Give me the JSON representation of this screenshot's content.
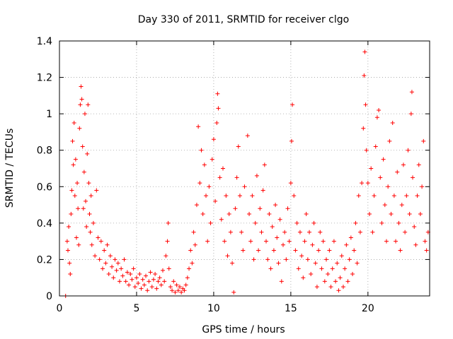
{
  "chart_data": {
    "type": "scatter",
    "title": "Day 330 of 2011, SRMTID for receiver clgo",
    "xlabel": "GPS time / hours",
    "ylabel": "SRMTID / TECUs",
    "xlim": [
      0,
      24
    ],
    "ylim": [
      0,
      1.4
    ],
    "xticks": [
      0,
      5,
      10,
      15,
      20
    ],
    "xtick_labels": [
      "0",
      "5",
      "10",
      "15",
      "20"
    ],
    "yticks": [
      0,
      0.2,
      0.4,
      0.6,
      0.8,
      1,
      1.2,
      1.4
    ],
    "ytick_labels": [
      "0",
      "0.2",
      "0.4",
      "0.6",
      "0.8",
      "1",
      "1.2",
      "1.4"
    ],
    "grid": true,
    "marker": "plus",
    "series_color": "#ff0000",
    "series": [
      {
        "name": "SRMTID",
        "points": [
          [
            0.4,
            0.0
          ],
          [
            0.5,
            0.3
          ],
          [
            0.55,
            0.25
          ],
          [
            0.6,
            0.38
          ],
          [
            0.65,
            0.18
          ],
          [
            0.7,
            0.12
          ],
          [
            0.75,
            0.45
          ],
          [
            0.8,
            0.58
          ],
          [
            0.85,
            0.85
          ],
          [
            0.9,
            0.72
          ],
          [
            0.95,
            0.95
          ],
          [
            1.0,
            0.55
          ],
          [
            1.05,
            0.75
          ],
          [
            1.1,
            0.32
          ],
          [
            1.15,
            0.62
          ],
          [
            1.2,
            0.48
          ],
          [
            1.25,
            0.28
          ],
          [
            1.3,
            0.92
          ],
          [
            1.35,
            1.05
          ],
          [
            1.4,
            1.15
          ],
          [
            1.45,
            1.08
          ],
          [
            1.5,
            0.82
          ],
          [
            1.55,
            0.48
          ],
          [
            1.6,
            0.68
          ],
          [
            1.65,
            1.0
          ],
          [
            1.7,
            0.52
          ],
          [
            1.75,
            0.38
          ],
          [
            1.8,
            0.78
          ],
          [
            1.85,
            1.05
          ],
          [
            1.9,
            0.62
          ],
          [
            1.95,
            0.45
          ],
          [
            2.0,
            0.35
          ],
          [
            2.05,
            0.55
          ],
          [
            2.1,
            0.28
          ],
          [
            2.2,
            0.4
          ],
          [
            2.3,
            0.22
          ],
          [
            2.4,
            0.58
          ],
          [
            2.5,
            0.32
          ],
          [
            2.6,
            0.2
          ],
          [
            2.7,
            0.3
          ],
          [
            2.8,
            0.15
          ],
          [
            2.9,
            0.25
          ],
          [
            3.0,
            0.18
          ],
          [
            3.1,
            0.28
          ],
          [
            3.2,
            0.12
          ],
          [
            3.3,
            0.22
          ],
          [
            3.4,
            0.16
          ],
          [
            3.5,
            0.1
          ],
          [
            3.6,
            0.2
          ],
          [
            3.7,
            0.14
          ],
          [
            3.8,
            0.18
          ],
          [
            3.9,
            0.08
          ],
          [
            4.0,
            0.15
          ],
          [
            4.1,
            0.11
          ],
          [
            4.2,
            0.2
          ],
          [
            4.3,
            0.08
          ],
          [
            4.4,
            0.13
          ],
          [
            4.5,
            0.06
          ],
          [
            4.6,
            0.12
          ],
          [
            4.7,
            0.09
          ],
          [
            4.8,
            0.15
          ],
          [
            4.9,
            0.05
          ],
          [
            5.0,
            0.1
          ],
          [
            5.1,
            0.07
          ],
          [
            5.2,
            0.12
          ],
          [
            5.3,
            0.04
          ],
          [
            5.4,
            0.09
          ],
          [
            5.5,
            0.06
          ],
          [
            5.6,
            0.11
          ],
          [
            5.7,
            0.03
          ],
          [
            5.8,
            0.08
          ],
          [
            5.9,
            0.13
          ],
          [
            6.0,
            0.05
          ],
          [
            6.1,
            0.09
          ],
          [
            6.2,
            0.12
          ],
          [
            6.3,
            0.04
          ],
          [
            6.4,
            0.08
          ],
          [
            6.5,
            0.1
          ],
          [
            6.6,
            0.06
          ],
          [
            6.7,
            0.14
          ],
          [
            6.8,
            0.08
          ],
          [
            6.9,
            0.22
          ],
          [
            7.0,
            0.3
          ],
          [
            7.05,
            0.4
          ],
          [
            7.1,
            0.15
          ],
          [
            7.2,
            0.05
          ],
          [
            7.3,
            0.03
          ],
          [
            7.4,
            0.08
          ],
          [
            7.5,
            0.02
          ],
          [
            7.6,
            0.06
          ],
          [
            7.7,
            0.03
          ],
          [
            7.8,
            0.05
          ],
          [
            7.9,
            0.02
          ],
          [
            8.0,
            0.04
          ],
          [
            8.1,
            0.03
          ],
          [
            8.2,
            0.06
          ],
          [
            8.3,
            0.1
          ],
          [
            8.4,
            0.15
          ],
          [
            8.5,
            0.25
          ],
          [
            8.6,
            0.18
          ],
          [
            8.7,
            0.35
          ],
          [
            8.8,
            0.28
          ],
          [
            8.9,
            0.5
          ],
          [
            9.0,
            0.93
          ],
          [
            9.1,
            0.62
          ],
          [
            9.2,
            0.8
          ],
          [
            9.3,
            0.45
          ],
          [
            9.4,
            0.72
          ],
          [
            9.5,
            0.55
          ],
          [
            9.6,
            0.3
          ],
          [
            9.7,
            0.6
          ],
          [
            9.8,
            0.4
          ],
          [
            9.9,
            0.75
          ],
          [
            10.0,
            0.86
          ],
          [
            10.1,
            0.52
          ],
          [
            10.2,
            0.95
          ],
          [
            10.25,
            1.11
          ],
          [
            10.3,
            1.03
          ],
          [
            10.4,
            0.65
          ],
          [
            10.5,
            0.42
          ],
          [
            10.6,
            0.7
          ],
          [
            10.7,
            0.3
          ],
          [
            10.8,
            0.55
          ],
          [
            10.9,
            0.22
          ],
          [
            11.0,
            0.45
          ],
          [
            11.1,
            0.35
          ],
          [
            11.2,
            0.18
          ],
          [
            11.3,
            0.02
          ],
          [
            11.4,
            0.48
          ],
          [
            11.5,
            0.65
          ],
          [
            11.6,
            0.82
          ],
          [
            11.7,
            0.55
          ],
          [
            11.8,
            0.35
          ],
          [
            11.9,
            0.25
          ],
          [
            12.0,
            0.6
          ],
          [
            12.2,
            0.88
          ],
          [
            12.3,
            0.45
          ],
          [
            12.4,
            0.3
          ],
          [
            12.5,
            0.55
          ],
          [
            12.6,
            0.2
          ],
          [
            12.7,
            0.4
          ],
          [
            12.8,
            0.66
          ],
          [
            12.9,
            0.25
          ],
          [
            13.0,
            0.48
          ],
          [
            13.1,
            0.35
          ],
          [
            13.2,
            0.58
          ],
          [
            13.3,
            0.72
          ],
          [
            13.4,
            0.3
          ],
          [
            13.5,
            0.2
          ],
          [
            13.6,
            0.45
          ],
          [
            13.7,
            0.15
          ],
          [
            13.8,
            0.38
          ],
          [
            13.9,
            0.25
          ],
          [
            14.0,
            0.5
          ],
          [
            14.1,
            0.32
          ],
          [
            14.2,
            0.18
          ],
          [
            14.3,
            0.42
          ],
          [
            14.4,
            0.08
          ],
          [
            14.5,
            0.28
          ],
          [
            14.6,
            0.35
          ],
          [
            14.7,
            0.2
          ],
          [
            14.8,
            0.48
          ],
          [
            14.9,
            0.3
          ],
          [
            15.0,
            0.62
          ],
          [
            15.05,
            0.85
          ],
          [
            15.1,
            1.05
          ],
          [
            15.2,
            0.55
          ],
          [
            15.3,
            0.25
          ],
          [
            15.4,
            0.4
          ],
          [
            15.5,
            0.15
          ],
          [
            15.6,
            0.35
          ],
          [
            15.7,
            0.22
          ],
          [
            15.8,
            0.1
          ],
          [
            15.9,
            0.3
          ],
          [
            16.0,
            0.45
          ],
          [
            16.1,
            0.2
          ],
          [
            16.2,
            0.35
          ],
          [
            16.3,
            0.12
          ],
          [
            16.4,
            0.28
          ],
          [
            16.5,
            0.4
          ],
          [
            16.6,
            0.18
          ],
          [
            16.7,
            0.05
          ],
          [
            16.8,
            0.25
          ],
          [
            16.9,
            0.35
          ],
          [
            17.0,
            0.15
          ],
          [
            17.1,
            0.3
          ],
          [
            17.2,
            0.08
          ],
          [
            17.3,
            0.2
          ],
          [
            17.4,
            0.12
          ],
          [
            17.5,
            0.25
          ],
          [
            17.6,
            0.05
          ],
          [
            17.7,
            0.15
          ],
          [
            17.8,
            0.3
          ],
          [
            17.9,
            0.08
          ],
          [
            18.0,
            0.18
          ],
          [
            18.1,
            0.03
          ],
          [
            18.2,
            0.1
          ],
          [
            18.3,
            0.22
          ],
          [
            18.4,
            0.05
          ],
          [
            18.5,
            0.15
          ],
          [
            18.6,
            0.28
          ],
          [
            18.7,
            0.08
          ],
          [
            18.8,
            0.2
          ],
          [
            18.9,
            0.32
          ],
          [
            19.0,
            0.12
          ],
          [
            19.1,
            0.25
          ],
          [
            19.2,
            0.4
          ],
          [
            19.3,
            0.18
          ],
          [
            19.4,
            0.55
          ],
          [
            19.5,
            0.35
          ],
          [
            19.6,
            0.62
          ],
          [
            19.7,
            0.92
          ],
          [
            19.75,
            1.21
          ],
          [
            19.8,
            1.34
          ],
          [
            19.85,
            1.05
          ],
          [
            19.9,
            0.8
          ],
          [
            20.0,
            0.62
          ],
          [
            20.1,
            0.45
          ],
          [
            20.2,
            0.7
          ],
          [
            20.3,
            0.35
          ],
          [
            20.4,
            0.55
          ],
          [
            20.5,
            0.82
          ],
          [
            20.6,
            0.98
          ],
          [
            20.7,
            1.02
          ],
          [
            20.8,
            0.65
          ],
          [
            20.9,
            0.4
          ],
          [
            21.0,
            0.75
          ],
          [
            21.1,
            0.5
          ],
          [
            21.2,
            0.3
          ],
          [
            21.3,
            0.6
          ],
          [
            21.4,
            0.85
          ],
          [
            21.5,
            0.45
          ],
          [
            21.6,
            0.95
          ],
          [
            21.7,
            0.55
          ],
          [
            21.8,
            0.3
          ],
          [
            21.9,
            0.68
          ],
          [
            22.0,
            0.4
          ],
          [
            22.1,
            0.25
          ],
          [
            22.2,
            0.5
          ],
          [
            22.3,
            0.72
          ],
          [
            22.4,
            0.35
          ],
          [
            22.5,
            0.55
          ],
          [
            22.6,
            0.8
          ],
          [
            22.7,
            0.45
          ],
          [
            22.8,
            1.0
          ],
          [
            22.85,
            1.12
          ],
          [
            22.9,
            0.65
          ],
          [
            23.0,
            0.38
          ],
          [
            23.1,
            0.28
          ],
          [
            23.2,
            0.55
          ],
          [
            23.3,
            0.72
          ],
          [
            23.4,
            0.45
          ],
          [
            23.5,
            0.6
          ],
          [
            23.6,
            0.85
          ],
          [
            23.7,
            0.3
          ],
          [
            23.8,
            0.25
          ],
          [
            23.9,
            0.35
          ]
        ]
      }
    ]
  }
}
